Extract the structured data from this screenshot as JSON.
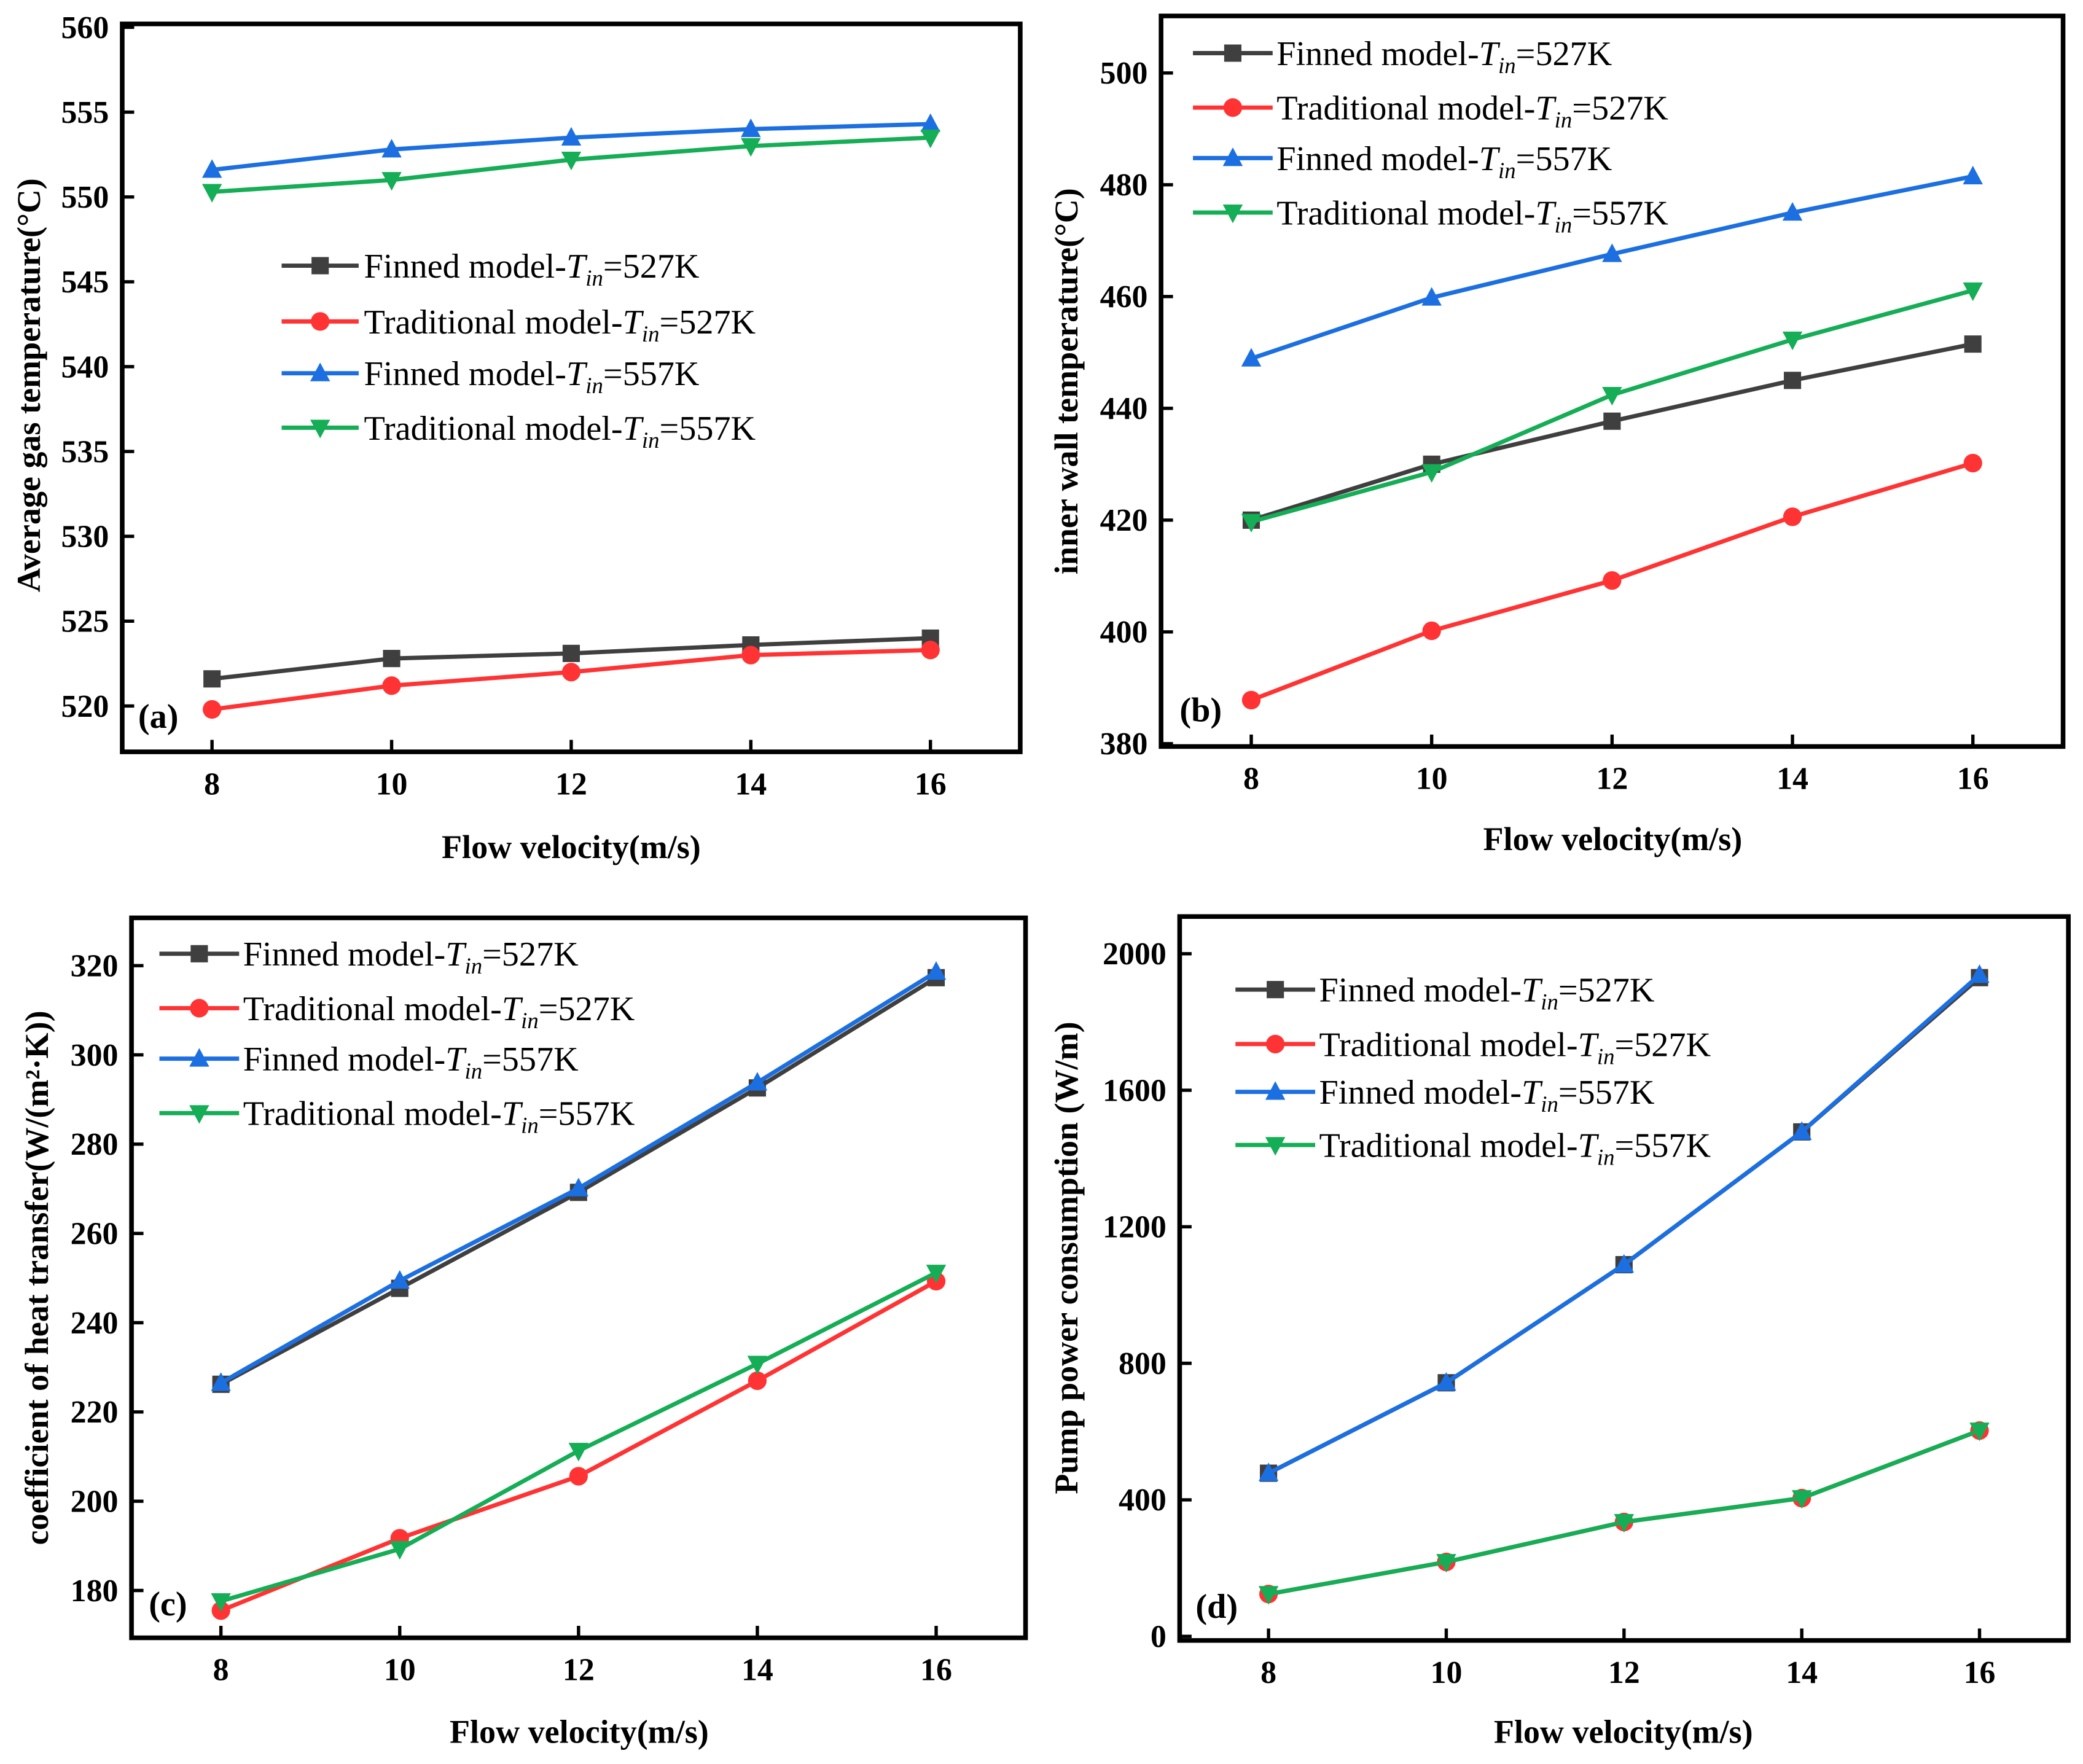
{
  "chart_data": [
    {
      "type": "line",
      "panel_label": "(a)",
      "xlabel": "Flow velocity(m/s)",
      "ylabel": "Average gas temperature(°C)",
      "x": [
        8,
        10,
        12,
        14,
        16
      ],
      "xticks": [
        8,
        10,
        12,
        14,
        16
      ],
      "xlim": [
        7,
        17
      ],
      "yticks": [
        520,
        525,
        530,
        535,
        540,
        545,
        550,
        555,
        560
      ],
      "ylim": [
        517.3,
        560.2
      ],
      "legend_position": "center-left",
      "series": [
        {
          "name": {
            "prefix": "Finned model-",
            "var": "T",
            "sub": "in",
            "suffix": "=527K"
          },
          "color": "#3f3f3f",
          "marker": "square",
          "values": [
            521.6,
            522.8,
            523.1,
            523.6,
            524.0
          ]
        },
        {
          "name": {
            "prefix": "Traditional model-",
            "var": "T",
            "sub": "in",
            "suffix": "=527K"
          },
          "color": "#ff3333",
          "marker": "circle",
          "values": [
            519.8,
            521.2,
            522.0,
            523.0,
            523.3
          ]
        },
        {
          "name": {
            "prefix": "Finned model-",
            "var": "T",
            "sub": "in",
            "suffix": "=557K"
          },
          "color": "#1c6fe0",
          "marker": "triangle-up",
          "values": [
            551.6,
            552.8,
            553.5,
            554.0,
            554.3
          ]
        },
        {
          "name": {
            "prefix": "Traditional model-",
            "var": "T",
            "sub": "in",
            "suffix": "=557K"
          },
          "color": "#15ad55",
          "marker": "triangle-down",
          "values": [
            550.3,
            551.0,
            552.2,
            553.0,
            553.5
          ]
        }
      ]
    },
    {
      "type": "line",
      "panel_label": "(b)",
      "xlabel": "Flow  velocity(m/s)",
      "ylabel": "inner wall temperature(°C)",
      "x": [
        8,
        10,
        12,
        14,
        16
      ],
      "xticks": [
        8,
        10,
        12,
        14,
        16
      ],
      "xlim": [
        7,
        17
      ],
      "yticks": [
        380,
        400,
        420,
        440,
        460,
        480,
        500
      ],
      "ylim": [
        379.5,
        510.2
      ],
      "legend_position": "top-left",
      "series": [
        {
          "name": {
            "prefix": "Finned model-",
            "var": "T",
            "sub": "in",
            "suffix": "=527K"
          },
          "color": "#3f3f3f",
          "marker": "square",
          "values": [
            420.0,
            430.0,
            437.7,
            445.0,
            451.5
          ]
        },
        {
          "name": {
            "prefix": "Traditional model-",
            "var": "T",
            "sub": "in",
            "suffix": "=527K"
          },
          "color": "#ff3333",
          "marker": "circle",
          "values": [
            387.8,
            400.2,
            409.2,
            420.6,
            430.2
          ]
        },
        {
          "name": {
            "prefix": "Finned model-",
            "var": "T",
            "sub": "in",
            "suffix": "=557K"
          },
          "color": "#1c6fe0",
          "marker": "triangle-up",
          "values": [
            448.9,
            459.8,
            467.6,
            475.0,
            481.5
          ]
        },
        {
          "name": {
            "prefix": "Traditional model-",
            "var": "T",
            "sub": "in",
            "suffix": "=557K"
          },
          "color": "#15ad55",
          "marker": "triangle-down",
          "values": [
            419.7,
            428.6,
            442.4,
            452.3,
            461.1
          ]
        }
      ]
    },
    {
      "type": "line",
      "panel_label": "(c)",
      "xlabel": "Flow velocity(m/s)",
      "ylabel": "coefficient of heat transfer(W/(m²·K))",
      "x": [
        8,
        10,
        12,
        14,
        16
      ],
      "xticks": [
        8,
        10,
        12,
        14,
        16
      ],
      "xlim": [
        7,
        17
      ],
      "yticks": [
        180,
        200,
        220,
        240,
        260,
        280,
        300,
        320
      ],
      "ylim": [
        169.4,
        330.7
      ],
      "legend_position": "top-left",
      "series": [
        {
          "name": {
            "prefix": "Finned model-",
            "var": "T",
            "sub": "in",
            "suffix": "=527K"
          },
          "color": "#3f3f3f",
          "marker": "square",
          "values": [
            226.2,
            247.7,
            269.2,
            292.6,
            317.3
          ]
        },
        {
          "name": {
            "prefix": "Traditional model-",
            "var": "T",
            "sub": "in",
            "suffix": "=527K"
          },
          "color": "#ff3333",
          "marker": "circle",
          "values": [
            175.5,
            191.7,
            205.6,
            227.0,
            249.3
          ]
        },
        {
          "name": {
            "prefix": "Finned model-",
            "var": "T",
            "sub": "in",
            "suffix": "=557K"
          },
          "color": "#1c6fe0",
          "marker": "triangle-up",
          "values": [
            226.5,
            249.4,
            270.1,
            293.8,
            318.6
          ]
        },
        {
          "name": {
            "prefix": "Traditional model-",
            "var": "T",
            "sub": "in",
            "suffix": "=557K"
          },
          "color": "#15ad55",
          "marker": "triangle-down",
          "values": [
            177.6,
            189.3,
            211.3,
            230.8,
            251.2
          ]
        }
      ]
    },
    {
      "type": "line",
      "panel_label": "(d)",
      "xlabel": "Flow velocity(m/s)",
      "ylabel": "Pump power consumption (W/m)",
      "x": [
        8,
        10,
        12,
        14,
        16
      ],
      "xticks": [
        8,
        10,
        12,
        14,
        16
      ],
      "xlim": [
        7,
        17
      ],
      "yticks": [
        0,
        400,
        800,
        1200,
        1600,
        2000
      ],
      "ylim": [
        -12,
        2109
      ],
      "legend_position": "top-left",
      "series": [
        {
          "name": {
            "prefix": "Finned model-",
            "var": "T",
            "sub": "in",
            "suffix": "=527K"
          },
          "color": "#3f3f3f",
          "marker": "square",
          "values": [
            478,
            743,
            1089,
            1478,
            1930
          ]
        },
        {
          "name": {
            "prefix": "Traditional model-",
            "var": "T",
            "sub": "in",
            "suffix": "=527K"
          },
          "color": "#ff3333",
          "marker": "circle",
          "values": [
            124,
            218,
            335,
            405,
            603
          ]
        },
        {
          "name": {
            "prefix": "Finned model-",
            "var": "T",
            "sub": "in",
            "suffix": "=557K"
          },
          "color": "#1c6fe0",
          "marker": "triangle-up",
          "values": [
            478,
            743,
            1089,
            1478,
            1938
          ]
        },
        {
          "name": {
            "prefix": "Traditional model-",
            "var": "T",
            "sub": "in",
            "suffix": "=557K"
          },
          "color": "#15ad55",
          "marker": "triangle-down",
          "values": [
            124,
            218,
            335,
            405,
            603
          ]
        }
      ]
    }
  ]
}
